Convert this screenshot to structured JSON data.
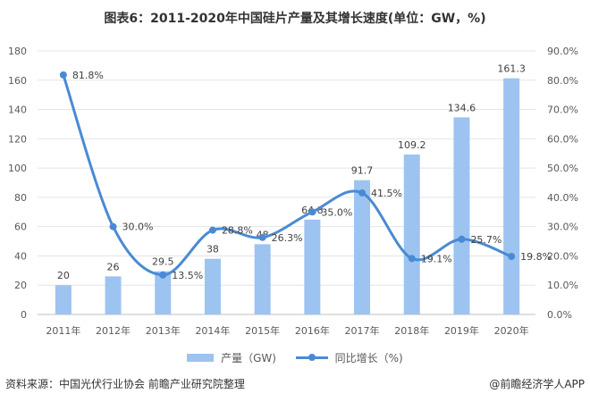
{
  "title": "图表6：2011-2020年中国硅片产量及其增长速度(单位：GW，%)",
  "chart_data": {
    "type": "bar+line",
    "categories": [
      "2011年",
      "2012年",
      "2013年",
      "2014年",
      "2015年",
      "2016年",
      "2017年",
      "2018年",
      "2019年",
      "2020年"
    ],
    "series": [
      {
        "name": "产量（GW)",
        "type": "bar",
        "axis": "left",
        "values": [
          20,
          26,
          29.5,
          38,
          48,
          64.8,
          91.7,
          109.2,
          134.6,
          161.3
        ],
        "labels": [
          "20",
          "26",
          "29.5",
          "38",
          "48",
          "64.8",
          "91.7",
          "109.2",
          "134.6",
          "161.3"
        ],
        "color": "#9dc3f0"
      },
      {
        "name": "同比增长（%)",
        "type": "line",
        "axis": "right",
        "values": [
          81.8,
          30.0,
          13.5,
          28.8,
          26.3,
          35.0,
          41.5,
          19.1,
          25.7,
          19.8
        ],
        "labels": [
          "81.8%",
          "30.0%",
          "13.5%",
          "28.8%",
          "26.3%",
          "35.0%",
          "41.5%",
          "19.1%",
          "25.7%",
          "19.8%"
        ],
        "color": "#4a8ad4"
      }
    ],
    "ylim_left": [
      0,
      180
    ],
    "yticks_left": [
      "0",
      "20",
      "40",
      "60",
      "80",
      "100",
      "120",
      "140",
      "160",
      "180"
    ],
    "ylim_right": [
      0,
      90
    ],
    "yticks_right": [
      "0.0%",
      "10.0%",
      "20.0%",
      "30.0%",
      "40.0%",
      "50.0%",
      "60.0%",
      "70.0%",
      "80.0%",
      "90.0%"
    ],
    "grid": true,
    "legend": "bottom"
  },
  "legend": {
    "bar": "产量（GW)",
    "line": "同比增长（%)"
  },
  "source": "资料来源：中国光伏行业协会 前瞻产业研究院整理",
  "credit": "@前瞻经济学人APP"
}
